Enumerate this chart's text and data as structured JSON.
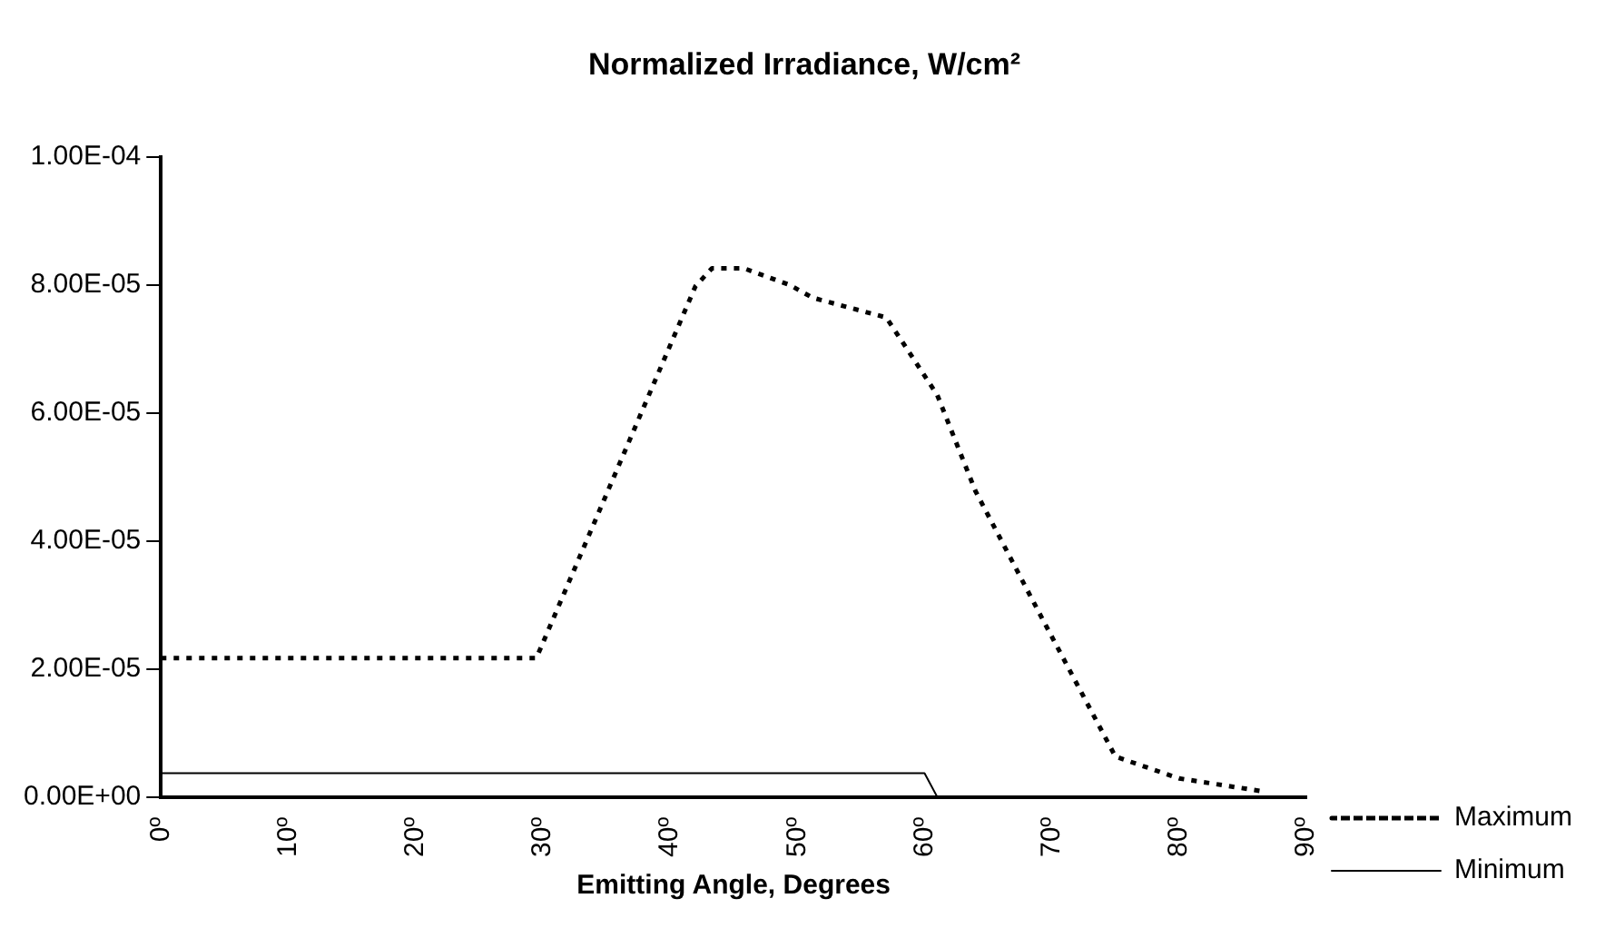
{
  "chart_data": {
    "type": "line",
    "title": "Normalized Irradiance, W/cm²",
    "xlabel": "Emitting Angle, Degrees",
    "xlim": [
      0,
      90
    ],
    "xticks": [
      {
        "value": 0,
        "label": "0º"
      },
      {
        "value": 10,
        "label": "10º"
      },
      {
        "value": 20,
        "label": "20º"
      },
      {
        "value": 30,
        "label": "30º"
      },
      {
        "value": 40,
        "label": "40º"
      },
      {
        "value": 50,
        "label": "50º"
      },
      {
        "value": 60,
        "label": "60º"
      },
      {
        "value": 70,
        "label": "70º"
      },
      {
        "value": 80,
        "label": "80º"
      },
      {
        "value": 90,
        "label": "90º"
      }
    ],
    "ylim": [
      0,
      0.0001
    ],
    "yticks": [
      {
        "value": 0,
        "label": "0.00E+00"
      },
      {
        "value": 2e-05,
        "label": "2.00E-05"
      },
      {
        "value": 4e-05,
        "label": "4.00E-05"
      },
      {
        "value": 6e-05,
        "label": "6.00E-05"
      },
      {
        "value": 8e-05,
        "label": "8.00E-05"
      },
      {
        "value": 0.0001,
        "label": "1.00E-04"
      }
    ],
    "grid": false,
    "legend": "bottom right",
    "marker": "none",
    "series": [
      {
        "name": "Maximum",
        "color": "#000000",
        "line_style": "dotted",
        "x": [
          0,
          29.5,
          42,
          43.3,
          45.8,
          49.4,
          51.2,
          57,
          61,
          64,
          69,
          75,
          80,
          86.5
        ],
        "values": [
          2.17e-05,
          2.17e-05,
          7.98e-05,
          8.26e-05,
          8.26e-05,
          8e-05,
          7.8e-05,
          7.49e-05,
          6.28e-05,
          4.78e-05,
          2.88e-05,
          6.3e-06,
          2.9e-06,
          9e-07
        ]
      },
      {
        "name": "Minimum",
        "color": "#000000",
        "line_style": "solid",
        "x": [
          0,
          60,
          61
        ],
        "values": [
          3.7e-06,
          3.7e-06,
          0
        ]
      }
    ]
  }
}
